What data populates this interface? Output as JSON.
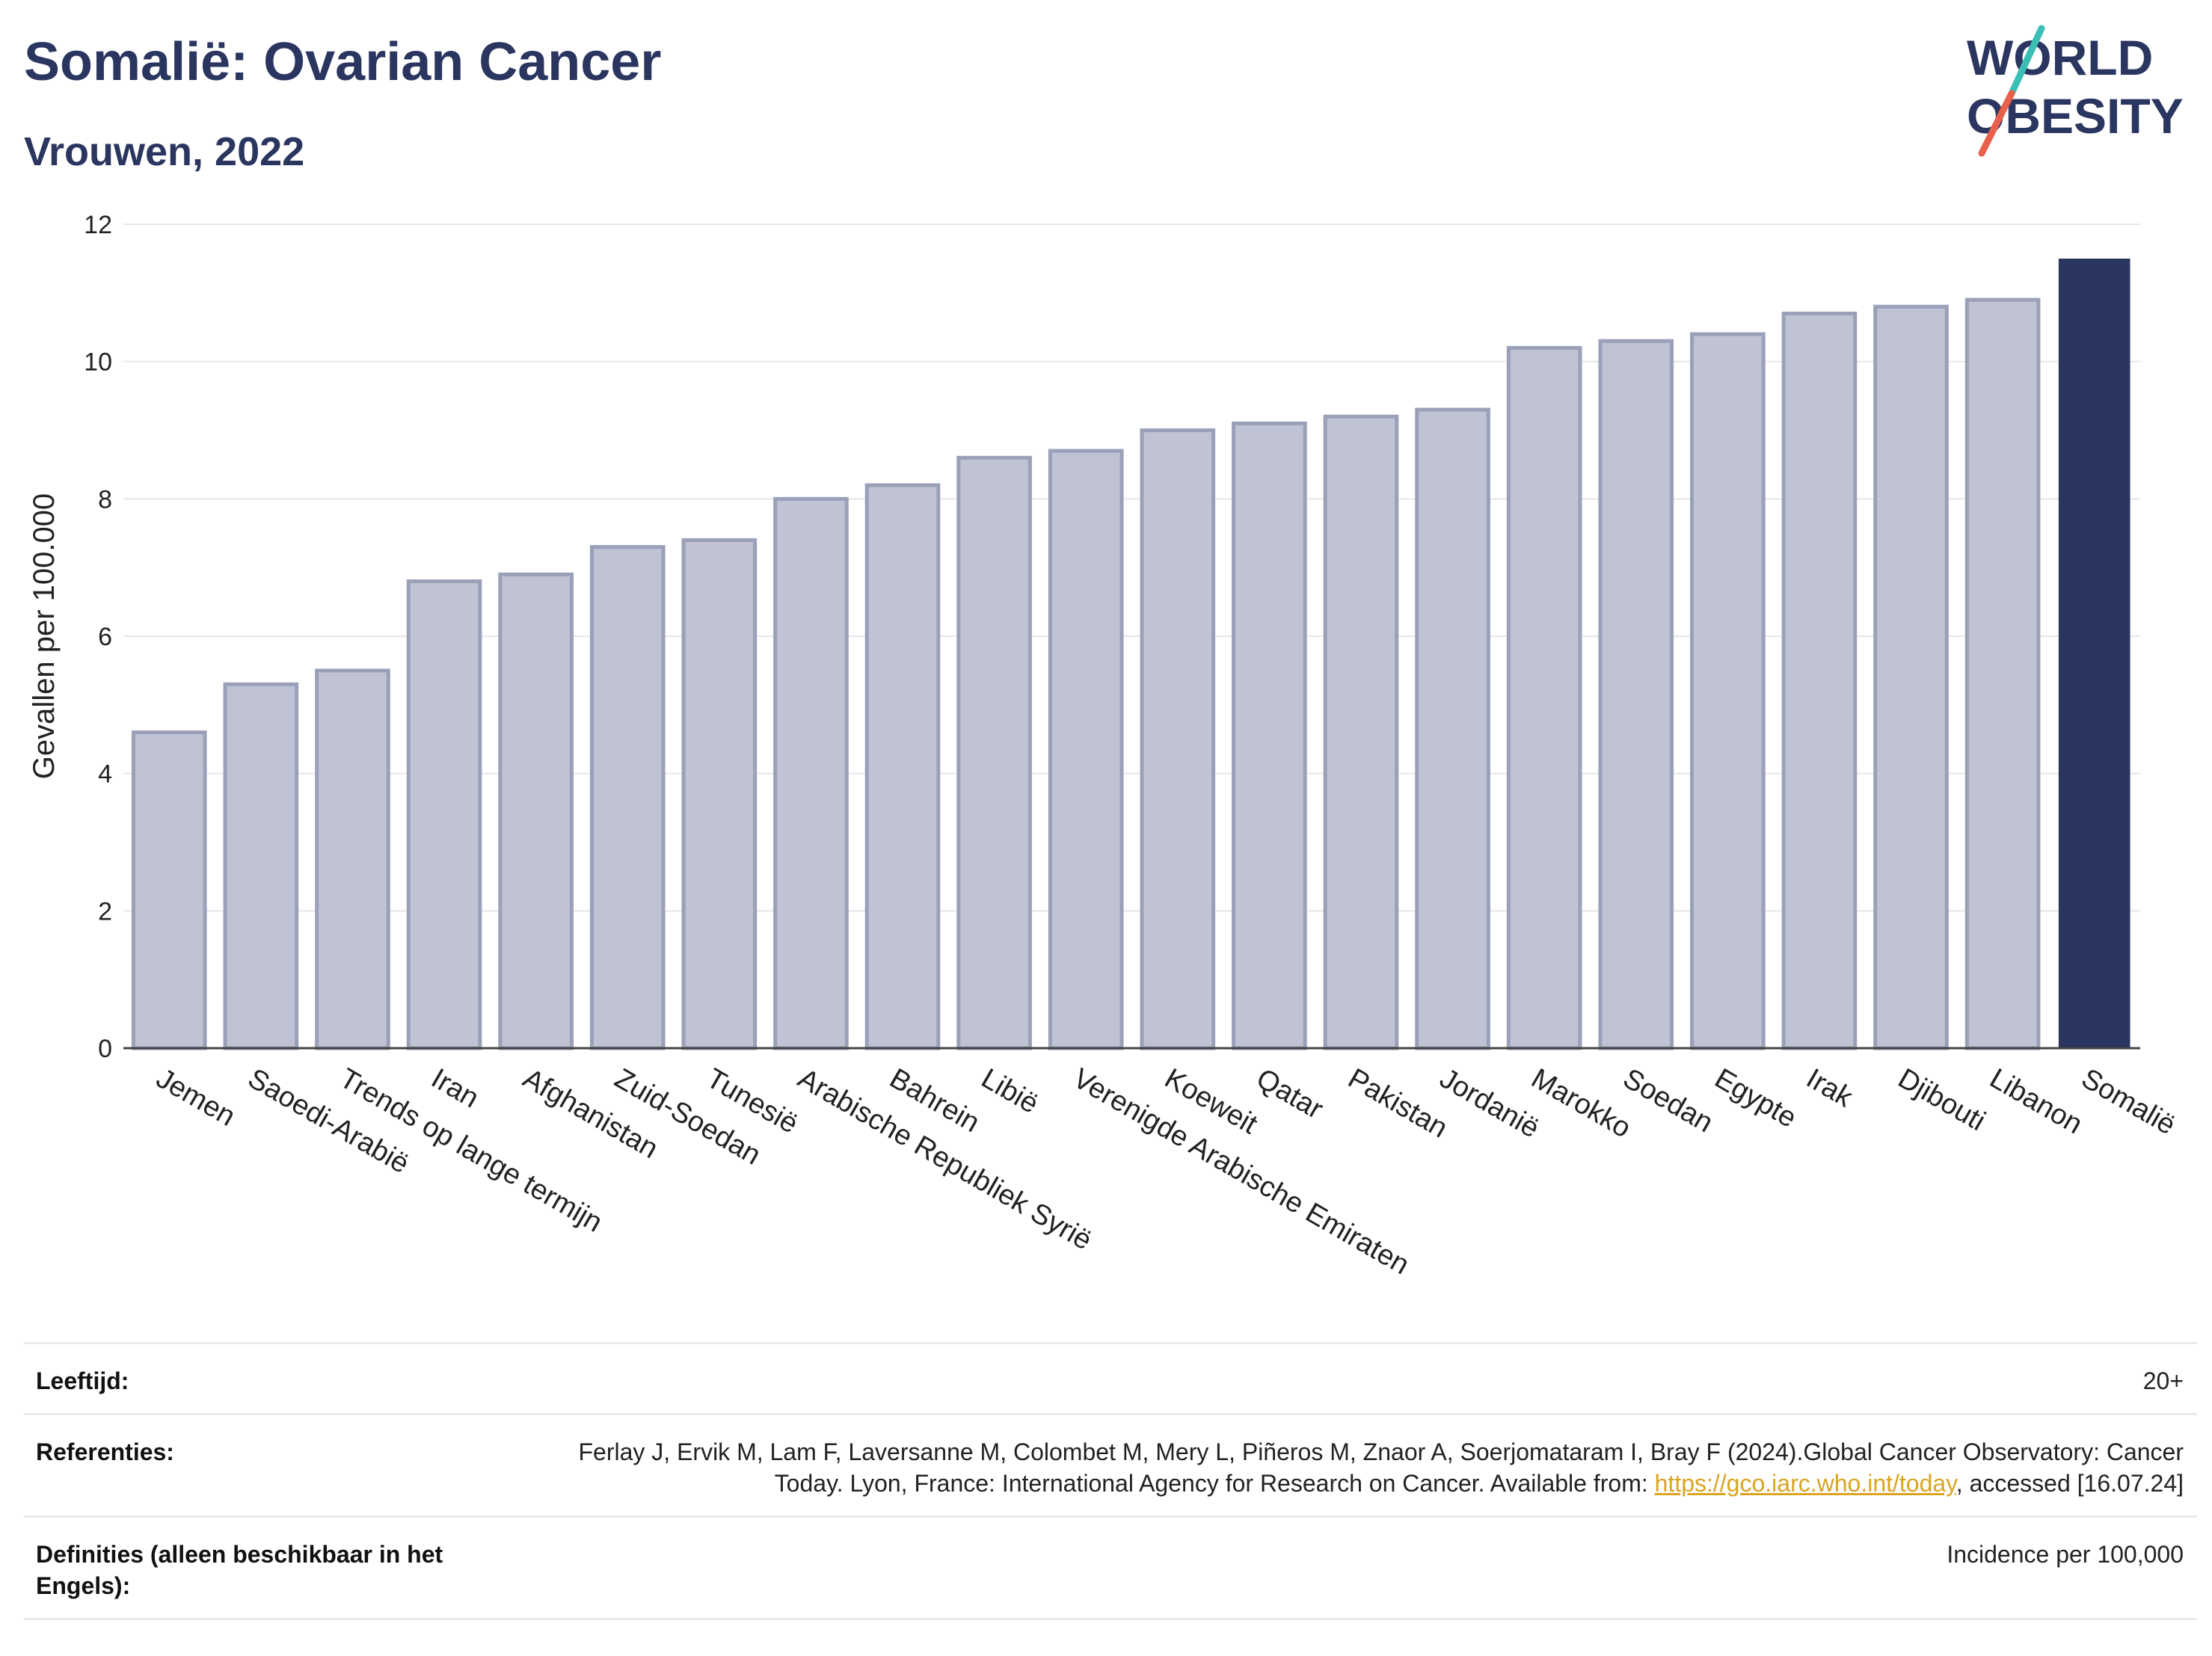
{
  "header": {
    "title": "Somalië: Ovarian Cancer",
    "subtitle": "Vrouwen, 2022"
  },
  "logo": {
    "line1": "WORLD",
    "line2": "OBESITY",
    "colors": {
      "text": "#2a3560",
      "slash_top": "#3bbfb5",
      "slash_bottom": "#e8614c"
    }
  },
  "chart_data": {
    "type": "bar",
    "ylabel": "Gevallen per 100.000",
    "xlabel": "",
    "ylim": [
      0,
      12
    ],
    "yticks": [
      0,
      2,
      4,
      6,
      8,
      10,
      12
    ],
    "grid": true,
    "highlight": "Somalië",
    "colors": {
      "bar": "#bfc3d3",
      "bar_edge": "#9aa0b8",
      "highlight": "#2a3560"
    },
    "categories": [
      "Jemen",
      "Saoedi-Arabië",
      "Trends op lange termijn",
      "Iran",
      "Afghanistan",
      "Zuid-Soedan",
      "Tunesië",
      "Arabische Republiek Syrië",
      "Bahrein",
      "Libië",
      "Verenigde Arabische Emiraten",
      "Koeweit",
      "Qatar",
      "Pakistan",
      "Jordanië",
      "Marokko",
      "Soedan",
      "Egypte",
      "Irak",
      "Djibouti",
      "Libanon",
      "Somalië"
    ],
    "values": [
      4.6,
      5.3,
      5.5,
      6.8,
      6.9,
      7.3,
      7.4,
      8.0,
      8.2,
      8.6,
      8.7,
      9.0,
      9.1,
      9.2,
      9.3,
      10.2,
      10.3,
      10.4,
      10.7,
      10.8,
      10.9,
      11.5
    ]
  },
  "meta": {
    "age_label": "Leeftijd:",
    "age_value": "20+",
    "refs_label": "Referenties:",
    "refs_text": "Ferlay J, Ervik M, Lam F, Laversanne M, Colombet M, Mery L, Piñeros M, Znaor A, Soerjomataram I, Bray F (2024).Global Cancer Observatory: Cancer Today. Lyon, France: International Agency for Research on Cancer. Available from:",
    "refs_link": "https://gco.iarc.who.int/today",
    "refs_suffix": ", accessed [16.07.24]",
    "defs_label": "Definities (alleen beschikbaar in het Engels):",
    "defs_value": "Incidence per 100,000"
  }
}
